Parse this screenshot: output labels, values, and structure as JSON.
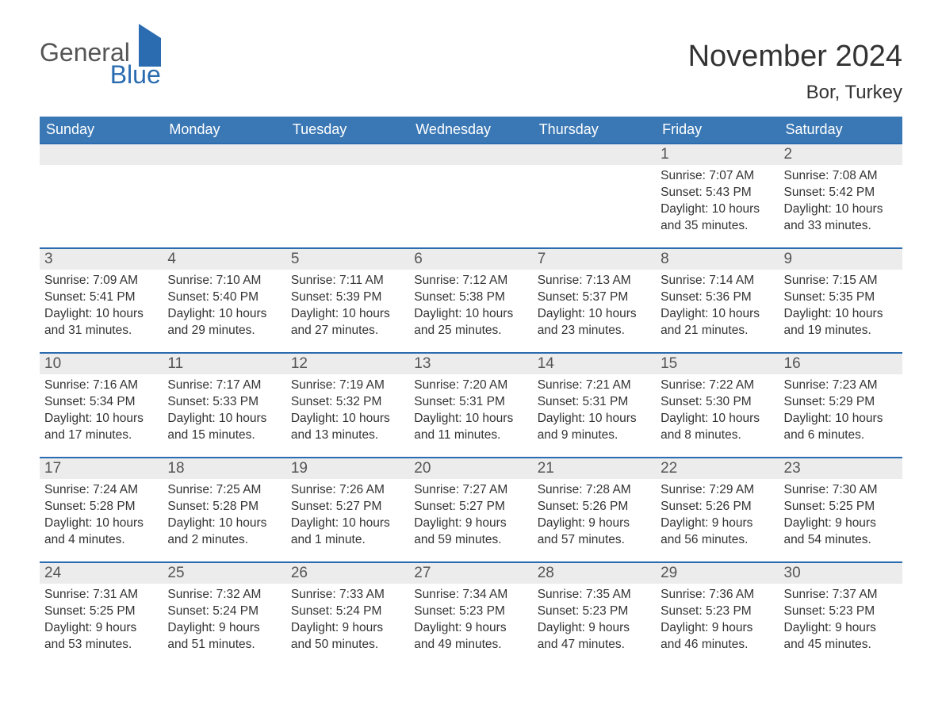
{
  "brand": {
    "general": "General",
    "blue": "Blue"
  },
  "header": {
    "month_title": "November 2024",
    "location": "Bor, Turkey"
  },
  "style": {
    "accent_color": "#2b6cb0",
    "header_bg": "#3a78b5",
    "header_text": "#ffffff",
    "daynum_bg": "#ececec",
    "body_text": "#333333",
    "background": "#ffffff",
    "font_family": "Arial, Helvetica, sans-serif",
    "month_title_fontsize": 38,
    "location_fontsize": 24,
    "dow_fontsize": 18,
    "daynum_fontsize": 19,
    "content_fontsize": 15.5
  },
  "dow": [
    "Sunday",
    "Monday",
    "Tuesday",
    "Wednesday",
    "Thursday",
    "Friday",
    "Saturday"
  ],
  "weeks": [
    [
      null,
      null,
      null,
      null,
      null,
      {
        "n": "1",
        "sunrise": "7:07 AM",
        "sunset": "5:43 PM",
        "daylight": "10 hours and 35 minutes."
      },
      {
        "n": "2",
        "sunrise": "7:08 AM",
        "sunset": "5:42 PM",
        "daylight": "10 hours and 33 minutes."
      }
    ],
    [
      {
        "n": "3",
        "sunrise": "7:09 AM",
        "sunset": "5:41 PM",
        "daylight": "10 hours and 31 minutes."
      },
      {
        "n": "4",
        "sunrise": "7:10 AM",
        "sunset": "5:40 PM",
        "daylight": "10 hours and 29 minutes."
      },
      {
        "n": "5",
        "sunrise": "7:11 AM",
        "sunset": "5:39 PM",
        "daylight": "10 hours and 27 minutes."
      },
      {
        "n": "6",
        "sunrise": "7:12 AM",
        "sunset": "5:38 PM",
        "daylight": "10 hours and 25 minutes."
      },
      {
        "n": "7",
        "sunrise": "7:13 AM",
        "sunset": "5:37 PM",
        "daylight": "10 hours and 23 minutes."
      },
      {
        "n": "8",
        "sunrise": "7:14 AM",
        "sunset": "5:36 PM",
        "daylight": "10 hours and 21 minutes."
      },
      {
        "n": "9",
        "sunrise": "7:15 AM",
        "sunset": "5:35 PM",
        "daylight": "10 hours and 19 minutes."
      }
    ],
    [
      {
        "n": "10",
        "sunrise": "7:16 AM",
        "sunset": "5:34 PM",
        "daylight": "10 hours and 17 minutes."
      },
      {
        "n": "11",
        "sunrise": "7:17 AM",
        "sunset": "5:33 PM",
        "daylight": "10 hours and 15 minutes."
      },
      {
        "n": "12",
        "sunrise": "7:19 AM",
        "sunset": "5:32 PM",
        "daylight": "10 hours and 13 minutes."
      },
      {
        "n": "13",
        "sunrise": "7:20 AM",
        "sunset": "5:31 PM",
        "daylight": "10 hours and 11 minutes."
      },
      {
        "n": "14",
        "sunrise": "7:21 AM",
        "sunset": "5:31 PM",
        "daylight": "10 hours and 9 minutes."
      },
      {
        "n": "15",
        "sunrise": "7:22 AM",
        "sunset": "5:30 PM",
        "daylight": "10 hours and 8 minutes."
      },
      {
        "n": "16",
        "sunrise": "7:23 AM",
        "sunset": "5:29 PM",
        "daylight": "10 hours and 6 minutes."
      }
    ],
    [
      {
        "n": "17",
        "sunrise": "7:24 AM",
        "sunset": "5:28 PM",
        "daylight": "10 hours and 4 minutes."
      },
      {
        "n": "18",
        "sunrise": "7:25 AM",
        "sunset": "5:28 PM",
        "daylight": "10 hours and 2 minutes."
      },
      {
        "n": "19",
        "sunrise": "7:26 AM",
        "sunset": "5:27 PM",
        "daylight": "10 hours and 1 minute."
      },
      {
        "n": "20",
        "sunrise": "7:27 AM",
        "sunset": "5:27 PM",
        "daylight": "9 hours and 59 minutes."
      },
      {
        "n": "21",
        "sunrise": "7:28 AM",
        "sunset": "5:26 PM",
        "daylight": "9 hours and 57 minutes."
      },
      {
        "n": "22",
        "sunrise": "7:29 AM",
        "sunset": "5:26 PM",
        "daylight": "9 hours and 56 minutes."
      },
      {
        "n": "23",
        "sunrise": "7:30 AM",
        "sunset": "5:25 PM",
        "daylight": "9 hours and 54 minutes."
      }
    ],
    [
      {
        "n": "24",
        "sunrise": "7:31 AM",
        "sunset": "5:25 PM",
        "daylight": "9 hours and 53 minutes."
      },
      {
        "n": "25",
        "sunrise": "7:32 AM",
        "sunset": "5:24 PM",
        "daylight": "9 hours and 51 minutes."
      },
      {
        "n": "26",
        "sunrise": "7:33 AM",
        "sunset": "5:24 PM",
        "daylight": "9 hours and 50 minutes."
      },
      {
        "n": "27",
        "sunrise": "7:34 AM",
        "sunset": "5:23 PM",
        "daylight": "9 hours and 49 minutes."
      },
      {
        "n": "28",
        "sunrise": "7:35 AM",
        "sunset": "5:23 PM",
        "daylight": "9 hours and 47 minutes."
      },
      {
        "n": "29",
        "sunrise": "7:36 AM",
        "sunset": "5:23 PM",
        "daylight": "9 hours and 46 minutes."
      },
      {
        "n": "30",
        "sunrise": "7:37 AM",
        "sunset": "5:23 PM",
        "daylight": "9 hours and 45 minutes."
      }
    ]
  ],
  "labels": {
    "sunrise": "Sunrise:",
    "sunset": "Sunset:",
    "daylight": "Daylight:"
  }
}
